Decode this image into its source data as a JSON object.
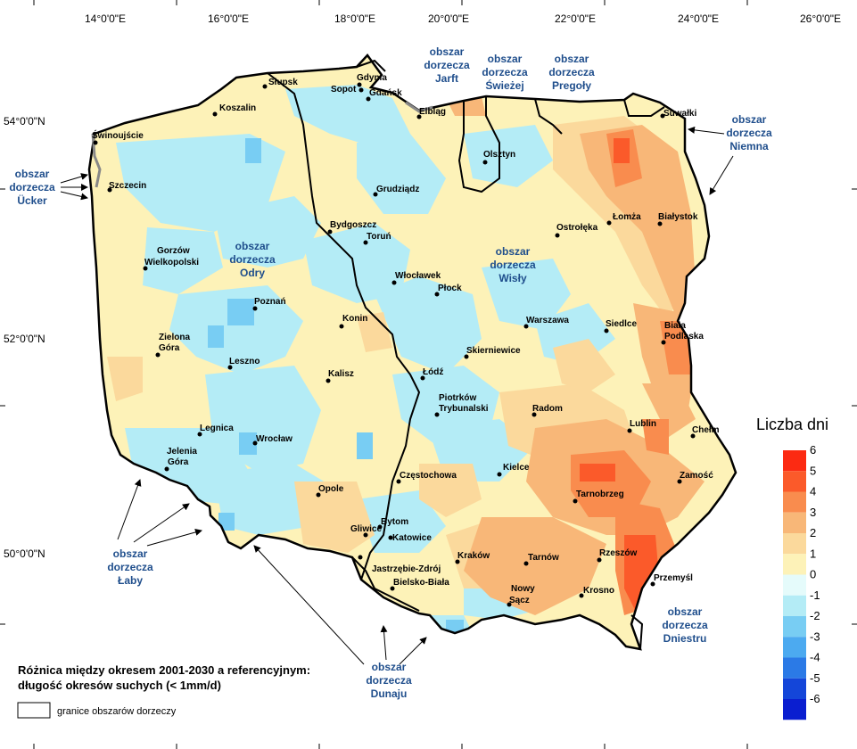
{
  "coords": {
    "top": [
      "14°0'0\"E",
      "16°0'0\"E",
      "18°0'0\"E",
      "20°0'0\"E",
      "22°0'0\"E",
      "24°0'0\"E",
      "26°0'0\"E"
    ],
    "left": [
      "54°0'0\"N",
      "52°0'0\"N",
      "50°0'0\"N"
    ]
  },
  "cities": [
    {
      "name": "Słupsk"
    },
    {
      "name": "Gdynia"
    },
    {
      "name": "Sopot"
    },
    {
      "name": "Gdańsk"
    },
    {
      "name": "Koszalin"
    },
    {
      "name": "Elbląg"
    },
    {
      "name": "Suwałki"
    },
    {
      "name": "Świnoujście"
    },
    {
      "name": "Olsztyn"
    },
    {
      "name": "Szczecin"
    },
    {
      "name": "Grudziądz"
    },
    {
      "name": "Łomża"
    },
    {
      "name": "Białystok"
    },
    {
      "name": "Ostrołęka"
    },
    {
      "name": "Bydgoszcz"
    },
    {
      "name": "Toruń"
    },
    {
      "name": "Gorzów"
    },
    {
      "name": "Wielkopolski"
    },
    {
      "name": "Włocławek"
    },
    {
      "name": "Płock"
    },
    {
      "name": "Poznań"
    },
    {
      "name": "Konin"
    },
    {
      "name": "Warszawa"
    },
    {
      "name": "Siedlce"
    },
    {
      "name": "Biała"
    },
    {
      "name": "Podlaska"
    },
    {
      "name": "Zielona"
    },
    {
      "name": "Góra"
    },
    {
      "name": "Skierniewice"
    },
    {
      "name": "Leszno"
    },
    {
      "name": "Łódź"
    },
    {
      "name": "Kalisz"
    },
    {
      "name": "Piotrków"
    },
    {
      "name": "Trybunalski"
    },
    {
      "name": "Radom"
    },
    {
      "name": "Lublin"
    },
    {
      "name": "Legnica"
    },
    {
      "name": "Chełm"
    },
    {
      "name": "Wrocław"
    },
    {
      "name": "Jelenia"
    },
    {
      "name": "Góra"
    },
    {
      "name": "Kielce"
    },
    {
      "name": "Częstochowa"
    },
    {
      "name": "Zamość"
    },
    {
      "name": "Tarnobrzeg"
    },
    {
      "name": "Opole"
    },
    {
      "name": "Bytom"
    },
    {
      "name": "Gliwice"
    },
    {
      "name": "Katowice"
    },
    {
      "name": "Rzeszów"
    },
    {
      "name": "Kraków"
    },
    {
      "name": "Tarnów"
    },
    {
      "name": "Przemyśl"
    },
    {
      "name": "Jastrzębie-Zdrój"
    },
    {
      "name": "Bielsko-Biała"
    },
    {
      "name": "Nowy"
    },
    {
      "name": "Sącz"
    },
    {
      "name": "Krosno"
    }
  ],
  "basins": {
    "jarft": [
      "obszar",
      "dorzecza",
      "Jarft"
    ],
    "swiezej": [
      "obszar",
      "dorzecza",
      "Świeżej"
    ],
    "pregoly": [
      "obszar",
      "dorzecza",
      "Pregoły"
    ],
    "niemna": [
      "obszar",
      "dorzecza",
      "Niemna"
    ],
    "ucker": [
      "obszar",
      "dorzecza",
      "Ücker"
    ],
    "odry": [
      "obszar",
      "dorzecza",
      "Odry"
    ],
    "wisly": [
      "obszar",
      "dorzecza",
      "Wisły"
    ],
    "laby": [
      "obszar",
      "dorzecza",
      "Łaby"
    ],
    "dunaju": [
      "obszar",
      "dorzecza",
      "Dunaju"
    ],
    "dniestru": [
      "obszar",
      "dorzecza",
      "Dniestru"
    ]
  },
  "legend": {
    "title": "Liczba dni",
    "ticks": [
      "6",
      "5",
      "4",
      "3",
      "2",
      "1",
      "0",
      "-1",
      "-2",
      "-3",
      "-4",
      "-5",
      "-6"
    ],
    "colors": [
      "#fc2a12",
      "#fb5a2a",
      "#f98c4e",
      "#f8b778",
      "#fbd99c",
      "#fdf2b8",
      "#e5fbfb",
      "#b4ecf6",
      "#78cdf3",
      "#4caaf0",
      "#2b7ae6",
      "#1446d9",
      "#0a1ed0"
    ]
  },
  "caption": {
    "line1": "Różnica między okresem 2001-2030 a referencyjnym:",
    "line2": "długość okresów suchych (< 1mm/d)"
  },
  "boundary_legend": "granice obszarów dorzeczy",
  "colors": {
    "land_default": "#fdf2b8",
    "boundary": "#000000",
    "basin_text": "#1f4e8c"
  }
}
